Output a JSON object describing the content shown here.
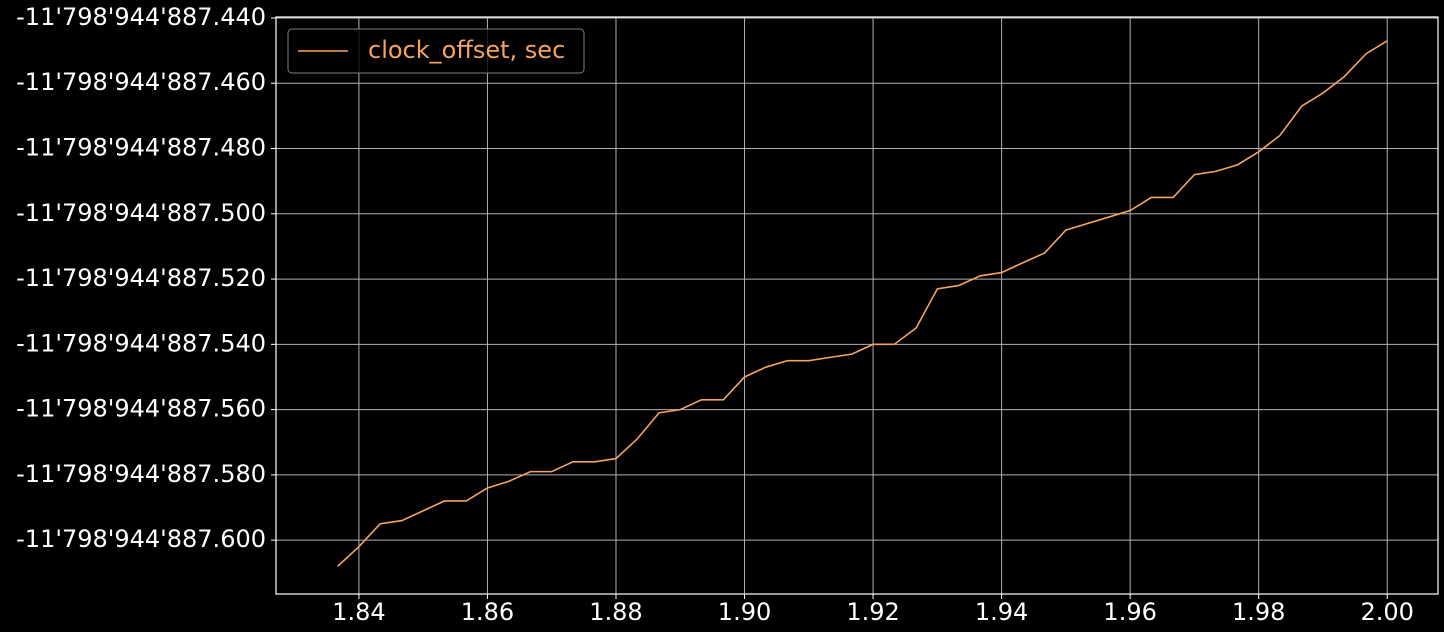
{
  "chart_data": {
    "type": "line",
    "x": [
      1.8367,
      1.84,
      1.8433,
      1.8467,
      1.85,
      1.8533,
      1.8567,
      1.86,
      1.8633,
      1.8667,
      1.87,
      1.8733,
      1.8767,
      1.88,
      1.8833,
      1.8867,
      1.89,
      1.8933,
      1.8967,
      1.9,
      1.9033,
      1.9067,
      1.91,
      1.9133,
      1.9167,
      1.92,
      1.9233,
      1.9267,
      1.93,
      1.9333,
      1.9367,
      1.94,
      1.9433,
      1.9467,
      1.95,
      1.9533,
      1.9567,
      1.96,
      1.9633,
      1.9667,
      1.97,
      1.9733,
      1.9767,
      1.98,
      1.9833,
      1.9867,
      1.99,
      1.9933,
      1.9967,
      2.0
    ],
    "series": [
      {
        "name": "clock_offset, sec",
        "color": "#f4a460",
        "values": [
          -11798944887.608,
          -11798944887.602,
          -11798944887.595,
          -11798944887.594,
          -11798944887.591,
          -11798944887.588,
          -11798944887.588,
          -11798944887.584,
          -11798944887.582,
          -11798944887.579,
          -11798944887.579,
          -11798944887.576,
          -11798944887.576,
          -11798944887.575,
          -11798944887.569,
          -11798944887.561,
          -11798944887.56,
          -11798944887.557,
          -11798944887.557,
          -11798944887.55,
          -11798944887.547,
          -11798944887.545,
          -11798944887.545,
          -11798944887.544,
          -11798944887.543,
          -11798944887.54,
          -11798944887.54,
          -11798944887.535,
          -11798944887.523,
          -11798944887.522,
          -11798944887.519,
          -11798944887.518,
          -11798944887.515,
          -11798944887.512,
          -11798944887.505,
          -11798944887.503,
          -11798944887.501,
          -11798944887.499,
          -11798944887.495,
          -11798944887.495,
          -11798944887.488,
          -11798944887.487,
          -11798944887.485,
          -11798944887.481,
          -11798944887.476,
          -11798944887.467,
          -11798944887.463,
          -11798944887.458,
          -11798944887.451,
          -11798944887.447
        ]
      }
    ],
    "xlim": [
      1.8271,
      2.0079
    ],
    "ylim": [
      -11798944887.6165,
      -11798944887.4397
    ],
    "xticks": [
      1.84,
      1.86,
      1.88,
      {
        "value": 1.9,
        "label": "1.90"
      },
      1.92,
      1.94,
      1.96,
      1.98,
      {
        "value": 2.0,
        "label": "2.00"
      }
    ],
    "yticks": [
      {
        "value": -11798944887.44,
        "label": "-11'798'944'887.440"
      },
      {
        "value": -11798944887.46,
        "label": "-11'798'944'887.460"
      },
      {
        "value": -11798944887.48,
        "label": "-11'798'944'887.480"
      },
      {
        "value": -11798944887.5,
        "label": "-11'798'944'887.500"
      },
      {
        "value": -11798944887.52,
        "label": "-11'798'944'887.520"
      },
      {
        "value": -11798944887.54,
        "label": "-11'798'944'887.540"
      },
      {
        "value": -11798944887.56,
        "label": "-11'798'944'887.560"
      },
      {
        "value": -11798944887.58,
        "label": "-11'798'944'887.580"
      },
      {
        "value": -11798944887.6,
        "label": "-11'798'944'887.600"
      }
    ],
    "grid": true,
    "legend": "upper left"
  }
}
